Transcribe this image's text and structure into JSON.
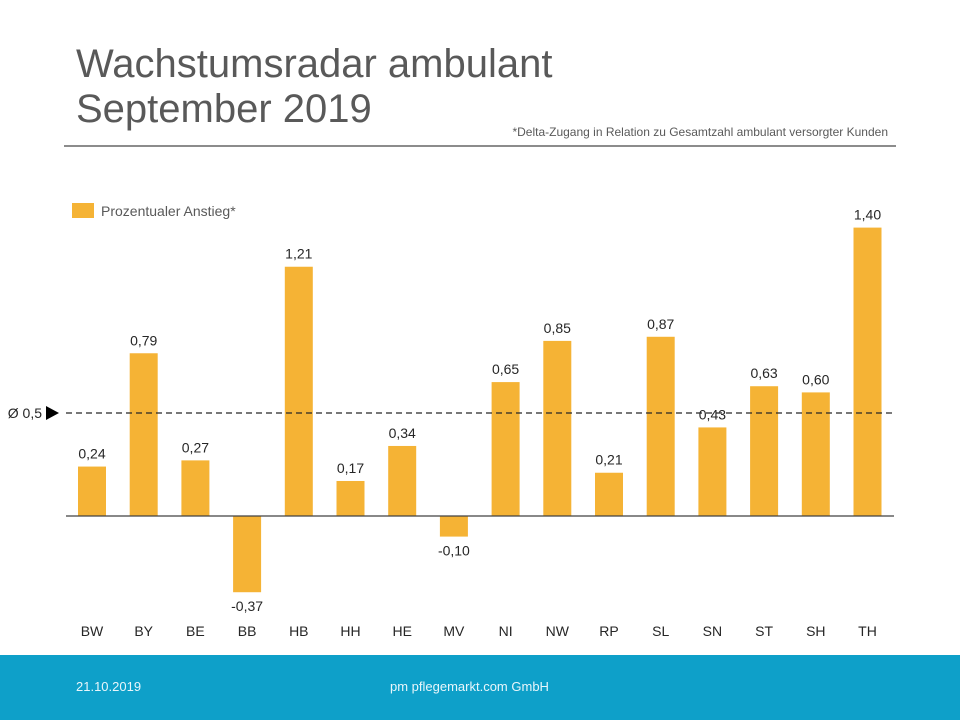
{
  "slide": {
    "title_line1": "Wachstumsradar ambulant",
    "title_line2": "September 2019",
    "footnote": "*Delta-Zugang  in Relation zu Gesamtzahl ambulant versorgter  Kunden"
  },
  "footer": {
    "date": "21.10.2019",
    "company": "pm pflegemarkt.com GmbH"
  },
  "colors": {
    "bar": "#f5b335",
    "text": "#262626",
    "title": "#595959",
    "footer": "#0ea0c9"
  },
  "chart_data": {
    "type": "bar",
    "categories": [
      "BW",
      "BY",
      "BE",
      "BB",
      "HB",
      "HH",
      "HE",
      "MV",
      "NI",
      "NW",
      "RP",
      "SL",
      "SN",
      "ST",
      "SH",
      "TH"
    ],
    "series": [
      {
        "name": "Prozentualer Anstieg*",
        "values": [
          0.24,
          0.79,
          0.27,
          -0.37,
          1.21,
          0.17,
          0.34,
          -0.1,
          0.65,
          0.85,
          0.21,
          0.87,
          0.43,
          0.63,
          0.6,
          1.4
        ]
      }
    ],
    "value_labels": [
      "0,24",
      "0,79",
      "0,27",
      "-0,37",
      "1,21",
      "0,17",
      "0,34",
      "-0,10",
      "0,65",
      "0,85",
      "0,21",
      "0,87",
      "0,43",
      "0,63",
      "0,60",
      "1,40"
    ],
    "reference_line": {
      "value": 0.5,
      "label": "Ø 0,5"
    },
    "legend": {
      "label": "Prozentualer Anstieg*",
      "position": "top-left"
    },
    "title": "",
    "xlabel": "",
    "ylabel": "",
    "grid": false
  }
}
